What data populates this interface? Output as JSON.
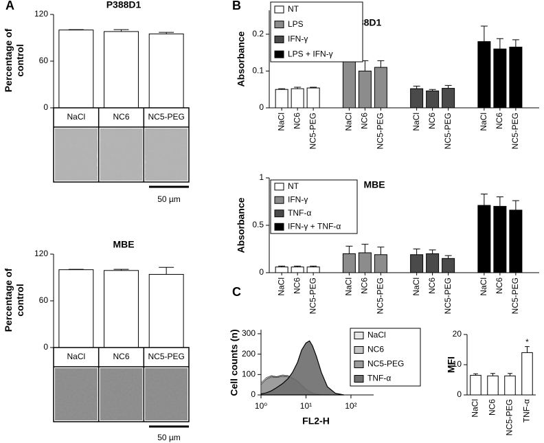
{
  "chart_data": [
    {
      "type": "bar",
      "panel": "A",
      "title": "P388D1",
      "y_label_lines": [
        "Percentage of",
        "control"
      ],
      "categories": [
        "NaCl",
        "NC6",
        "NC5-PEG"
      ],
      "values": [
        100,
        98,
        95
      ],
      "errors": [
        0.5,
        2.5,
        2
      ],
      "color": "#ffffff",
      "ylim": [
        0,
        120
      ],
      "yticks": [
        0,
        60,
        120
      ],
      "image_style": "cells",
      "scale_bar": "50 µm"
    },
    {
      "type": "bar",
      "title": "MBE",
      "y_label_lines": [
        "Percentage of",
        "control"
      ],
      "categories": [
        "NaCl",
        "NC6",
        "NC5-PEG"
      ],
      "values": [
        100,
        99,
        94
      ],
      "errors": [
        0.5,
        1.5,
        9
      ],
      "color": "#ffffff",
      "ylim": [
        0,
        120
      ],
      "yticks": [
        0,
        60,
        120
      ],
      "image_style": "flat",
      "scale_bar": "50 µm"
    },
    {
      "type": "grouped_bar",
      "panel": "B",
      "title": "P388D1",
      "y_label": "Absorbance",
      "categories": [
        "NaCl",
        "NC6",
        "NC5-PEG"
      ],
      "series": [
        {
          "name": "NT",
          "color": "#ffffff",
          "values": [
            0.05,
            0.052,
            0.054
          ],
          "errors": [
            0.002,
            0.004,
            0.002
          ]
        },
        {
          "name": "LPS",
          "color": "#8c8c8c",
          "values": [
            0.13,
            0.1,
            0.11
          ],
          "errors": [
            0.032,
            0.028,
            0.018
          ]
        },
        {
          "name": "IFN-γ",
          "color": "#4a4a4a",
          "values": [
            0.052,
            0.046,
            0.053
          ],
          "errors": [
            0.007,
            0.004,
            0.008
          ]
        },
        {
          "name": "LPS + IFN-γ",
          "color": "#000000",
          "values": [
            0.18,
            0.16,
            0.165
          ],
          "errors": [
            0.042,
            0.028,
            0.02
          ]
        }
      ],
      "ylim": [
        0,
        0.265
      ],
      "yticks": [
        0,
        0.1,
        0.2
      ],
      "legend": "upper left"
    },
    {
      "type": "grouped_bar",
      "title": "MBE",
      "y_label": "Absorbance",
      "categories": [
        "NaCl",
        "NC6",
        "NC5-PEG"
      ],
      "series": [
        {
          "name": "NT",
          "color": "#ffffff",
          "values": [
            0.06,
            0.06,
            0.06
          ],
          "errors": [
            0.01,
            0.01,
            0.01
          ]
        },
        {
          "name": "IFN-γ",
          "color": "#8c8c8c",
          "values": [
            0.2,
            0.21,
            0.19
          ],
          "errors": [
            0.08,
            0.09,
            0.08
          ]
        },
        {
          "name": "TNF-α",
          "color": "#4a4a4a",
          "values": [
            0.19,
            0.2,
            0.15
          ],
          "errors": [
            0.06,
            0.04,
            0.03
          ]
        },
        {
          "name": "IFN-γ + TNF-α",
          "color": "#000000",
          "values": [
            0.71,
            0.7,
            0.66
          ],
          "errors": [
            0.12,
            0.1,
            0.1
          ]
        }
      ],
      "ylim": [
        0,
        1
      ],
      "yticks": [
        0,
        0.5,
        1
      ],
      "legend": "upper left"
    },
    {
      "type": "area",
      "panel": "C",
      "x_label": "FL2-H",
      "y_label": "Cell counts (n)",
      "xscale": "log",
      "x": [
        1,
        1.3,
        1.7,
        2.2,
        3,
        4,
        5,
        6.5,
        8,
        10,
        12,
        14,
        17,
        22,
        30,
        45,
        70
      ],
      "series": [
        {
          "name": "NaCl",
          "color": "#e6e6e6",
          "values": [
            60,
            85,
            95,
            90,
            98,
            95,
            85,
            70,
            50,
            30,
            18,
            10,
            5,
            2,
            0,
            0,
            0
          ]
        },
        {
          "name": "NC6",
          "color": "#c4c4c4",
          "values": [
            55,
            80,
            92,
            88,
            95,
            92,
            82,
            68,
            48,
            28,
            16,
            9,
            4,
            1,
            0,
            0,
            0
          ]
        },
        {
          "name": "NC5-PEG",
          "color": "#9a9a9a",
          "values": [
            50,
            75,
            88,
            85,
            90,
            88,
            80,
            65,
            45,
            25,
            14,
            8,
            3,
            1,
            0,
            0,
            0
          ]
        },
        {
          "name": "TNF-α",
          "color": "#707070",
          "values": [
            5,
            10,
            20,
            35,
            55,
            80,
            110,
            160,
            220,
            255,
            265,
            240,
            190,
            110,
            40,
            8,
            0
          ]
        }
      ],
      "xlim": [
        1,
        320
      ],
      "xticks": [
        {
          "value": 1,
          "label": "10⁰"
        },
        {
          "value": 10,
          "label": "10¹"
        },
        {
          "value": 100,
          "label": "10²"
        }
      ],
      "ylim": [
        0,
        320
      ],
      "yticks": [
        0,
        100,
        200,
        300
      ],
      "legend": "upper right"
    },
    {
      "type": "bar",
      "y_label": "MFI",
      "categories": [
        "NaCl",
        "NC6",
        "NC5-PEG",
        "TNF-α"
      ],
      "values": [
        6.5,
        6.3,
        6.3,
        14
      ],
      "errors": [
        0.5,
        0.8,
        0.8,
        2
      ],
      "color": "#ffffff",
      "ylim": [
        0,
        20
      ],
      "yticks": [
        0,
        10,
        20
      ],
      "annotation": {
        "text": "*",
        "category": "TNF-α"
      }
    }
  ]
}
